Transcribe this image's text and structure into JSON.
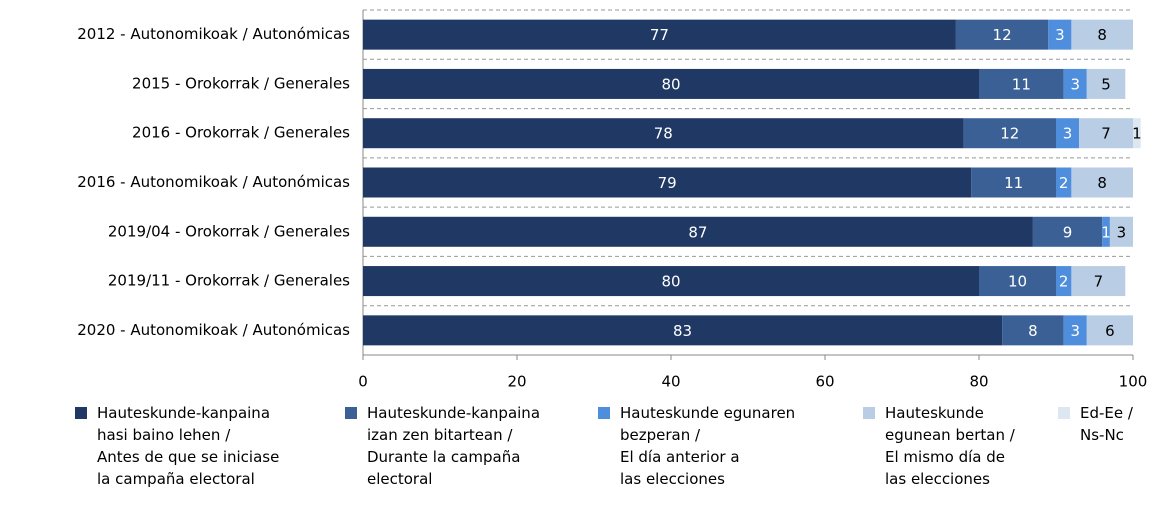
{
  "chart_data": {
    "type": "stacked-bar-horizontal",
    "categories": [
      "2012 - Autonomikoak / Autonómicas",
      "2015 - Orokorrak / Generales",
      "2016 - Orokorrak / Generales",
      "2016 - Autonomikoak / Autonómicas",
      "2019/04 - Orokorrak / Generales",
      "2019/11 - Orokorrak / Generales",
      "2020 - Autonomikoak / Autonómicas"
    ],
    "series": [
      {
        "name": "Hauteskunde-kanpaina\nhasi baino lehen /\nAntes de que se iniciase\nla campaña electoral",
        "color": "#1f3864",
        "values": [
          77,
          80,
          78,
          79,
          87,
          80,
          83
        ]
      },
      {
        "name": "Hauteskunde-kanpaina\nizan zen bitartean /\nDurante la campaña\nelectoral",
        "color": "#3b6096",
        "values": [
          12,
          11,
          12,
          11,
          9,
          10,
          8
        ]
      },
      {
        "name": "Hauteskunde egunaren\nbezperan /\nEl día anterior a\nlas elecciones",
        "color": "#4f8edc",
        "values": [
          3,
          3,
          3,
          2,
          1,
          2,
          3
        ]
      },
      {
        "name": "Hauteskunde\negunean bertan /\nEl mismo día de\nlas elecciones",
        "color": "#b9cde5",
        "values": [
          8,
          5,
          7,
          8,
          3,
          7,
          6
        ]
      },
      {
        "name": "Ed-Ee /\nNs-Nc",
        "color": "#dde7f2",
        "values": [
          null,
          null,
          1,
          null,
          null,
          null,
          null
        ]
      }
    ],
    "xlim": [
      0,
      100
    ],
    "xticks": [
      0,
      20,
      40,
      60,
      80,
      100
    ]
  }
}
